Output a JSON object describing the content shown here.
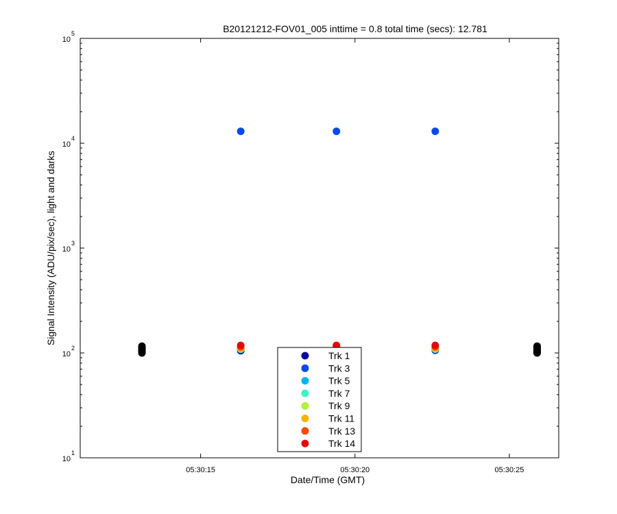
{
  "chart_data": {
    "type": "scatter",
    "title": "B20121212-FOV01_005 inttime = 0.8 total time (secs): 12.781",
    "xlabel": "Date/Time (GMT)",
    "ylabel": "Signal Intensity (ADU/pix/sec), light and darks",
    "yscale": "log",
    "ylim": [
      10,
      100000
    ],
    "xlim": [
      "05:30:11.1",
      "05:30:26.6"
    ],
    "x_ticks": [
      "05:30:15",
      "05:30:20",
      "05:30:25"
    ],
    "y_ticks": [
      {
        "base": "10",
        "exp": "1"
      },
      {
        "base": "10",
        "exp": "2"
      },
      {
        "base": "10",
        "exp": "3"
      },
      {
        "base": "10",
        "exp": "4"
      },
      {
        "base": "10",
        "exp": "5"
      }
    ],
    "grid": false,
    "legend_position": "bottom-center",
    "series": [
      {
        "name": "Trk 1",
        "color": "#0a0a9f",
        "points": [
          {
            "x": "05:30:16.3",
            "y": 105
          },
          {
            "x": "05:30:19.4",
            "y": 112
          },
          {
            "x": "05:30:22.6",
            "y": 106
          }
        ]
      },
      {
        "name": "Trk 3",
        "color": "#0a4ae6",
        "points": [
          {
            "x": "05:30:16.3",
            "y": 13000
          },
          {
            "x": "05:30:19.4",
            "y": 13000
          },
          {
            "x": "05:30:22.6",
            "y": 13000
          }
        ]
      },
      {
        "name": "Trk 5",
        "color": "#00b4f0",
        "points": [
          {
            "x": "05:30:16.3",
            "y": 108
          },
          {
            "x": "05:30:19.4",
            "y": 113
          },
          {
            "x": "05:30:22.6",
            "y": 108
          }
        ]
      },
      {
        "name": "Trk 7",
        "color": "#40f0c8",
        "points": [
          {
            "x": "05:30:16.3",
            "y": 109
          },
          {
            "x": "05:30:19.4",
            "y": 114
          },
          {
            "x": "05:30:22.6",
            "y": 109
          }
        ]
      },
      {
        "name": "Trk 9",
        "color": "#b4f03c",
        "points": [
          {
            "x": "05:30:16.3",
            "y": 110
          },
          {
            "x": "05:30:19.4",
            "y": 115
          },
          {
            "x": "05:30:22.6",
            "y": 110
          }
        ]
      },
      {
        "name": "Trk 11",
        "color": "#f8b400",
        "points": [
          {
            "x": "05:30:16.3",
            "y": 111
          },
          {
            "x": "05:30:19.4",
            "y": 116
          },
          {
            "x": "05:30:22.6",
            "y": 111
          }
        ]
      },
      {
        "name": "Trk 13",
        "color": "#f84a0a",
        "points": [
          {
            "x": "05:30:16.3",
            "y": 114
          },
          {
            "x": "05:30:19.4",
            "y": 117
          },
          {
            "x": "05:30:22.6",
            "y": 114
          }
        ]
      },
      {
        "name": "Trk 14",
        "color": "#e00a0a",
        "points": [
          {
            "x": "05:30:16.3",
            "y": 118
          },
          {
            "x": "05:30:19.4",
            "y": 118
          },
          {
            "x": "05:30:22.6",
            "y": 118
          }
        ]
      }
    ],
    "darks": {
      "color": "#000000",
      "points": [
        {
          "x": "05:30:13.1",
          "y": 100
        },
        {
          "x": "05:30:13.1",
          "y": 102
        },
        {
          "x": "05:30:13.1",
          "y": 104
        },
        {
          "x": "05:30:13.1",
          "y": 106
        },
        {
          "x": "05:30:13.1",
          "y": 108
        },
        {
          "x": "05:30:13.1",
          "y": 110
        },
        {
          "x": "05:30:13.1",
          "y": 112
        },
        {
          "x": "05:30:13.1",
          "y": 114
        },
        {
          "x": "05:30:13.1",
          "y": 116
        },
        {
          "x": "05:30:25.9",
          "y": 100
        },
        {
          "x": "05:30:25.9",
          "y": 102
        },
        {
          "x": "05:30:25.9",
          "y": 104
        },
        {
          "x": "05:30:25.9",
          "y": 106
        },
        {
          "x": "05:30:25.9",
          "y": 108
        },
        {
          "x": "05:30:25.9",
          "y": 110
        },
        {
          "x": "05:30:25.9",
          "y": 112
        },
        {
          "x": "05:30:25.9",
          "y": 114
        },
        {
          "x": "05:30:25.9",
          "y": 116
        }
      ]
    }
  }
}
